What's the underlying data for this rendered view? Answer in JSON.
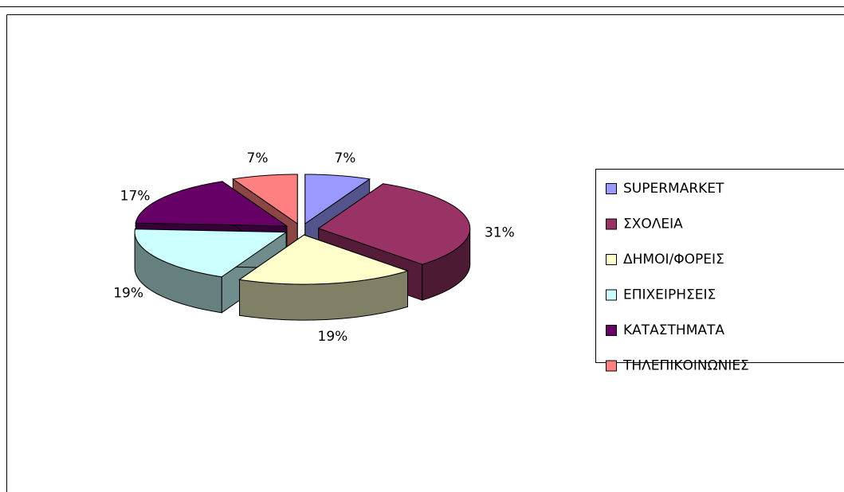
{
  "chart_data": {
    "type": "pie",
    "categories": [
      "SUPERMARKET",
      "ΣΧΟΛΕΙΑ",
      "ΔΗΜΟΙ/ΦΟΡΕΙΣ",
      "ΕΠΙΧΕΙΡΗΣΕΙΣ",
      "ΚΑΤΑΣΤΗΜΑΤΑ",
      "ΤΗΛΕΠΙΚΟΙΝΩΝΙΕΣ"
    ],
    "values": [
      7,
      31,
      19,
      19,
      17,
      7
    ],
    "value_labels": [
      "7%",
      "31%",
      "19%",
      "19%",
      "17%",
      "7%"
    ],
    "colors": [
      "#9999ff",
      "#993366",
      "#ffffcc",
      "#ccffff",
      "#660066",
      "#ff8080"
    ],
    "legend": "right"
  }
}
